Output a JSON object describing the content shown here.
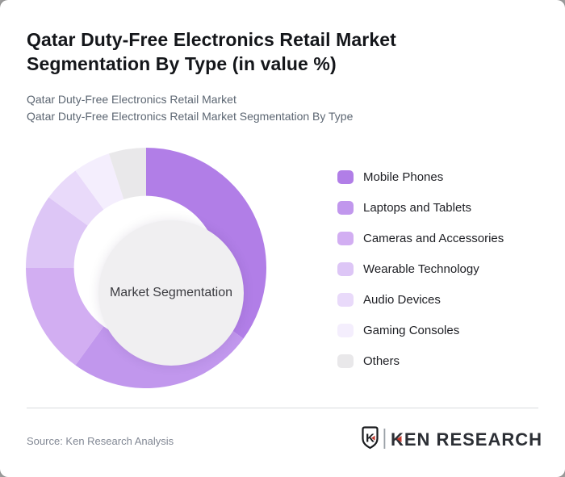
{
  "header": {
    "title": "Qatar Duty-Free Electronics Retail Market Segmentation By Type (in value %)",
    "subtitle_line1": "Qatar Duty-Free Electronics Retail Market",
    "subtitle_line2": "Qatar Duty-Free Electronics Retail Market Segmentation By Type"
  },
  "chart_data": {
    "type": "pie",
    "variant": "donut",
    "title": "Qatar Duty-Free Electronics Retail Market Segmentation By Type (in value %)",
    "center_label": "Market Segmentation",
    "categories": [
      "Mobile Phones",
      "Laptops and Tablets",
      "Cameras and Accessories",
      "Wearable Technology",
      "Audio Devices",
      "Gaming Consoles",
      "Others"
    ],
    "values": [
      35,
      25,
      15,
      10,
      5,
      5,
      5
    ],
    "unit": "%",
    "colors": [
      "#b17ee7",
      "#c197ed",
      "#d2aef2",
      "#ddc6f6",
      "#e9dafa",
      "#f4eefd",
      "#e9e8ea"
    ],
    "start_angle_deg": 0,
    "direction": "clockwise",
    "inner_radius_ratio": 0.6,
    "inner_circle_color": "#f0eff1",
    "legend_position": "right",
    "grid": false
  },
  "footer": {
    "source": "Source: Ken Research Analysis",
    "logo": {
      "badge_letter": "K",
      "brand": "KEN RESEARCH",
      "accent_color": "#c63b30",
      "ink_color": "#2c2f35"
    }
  }
}
